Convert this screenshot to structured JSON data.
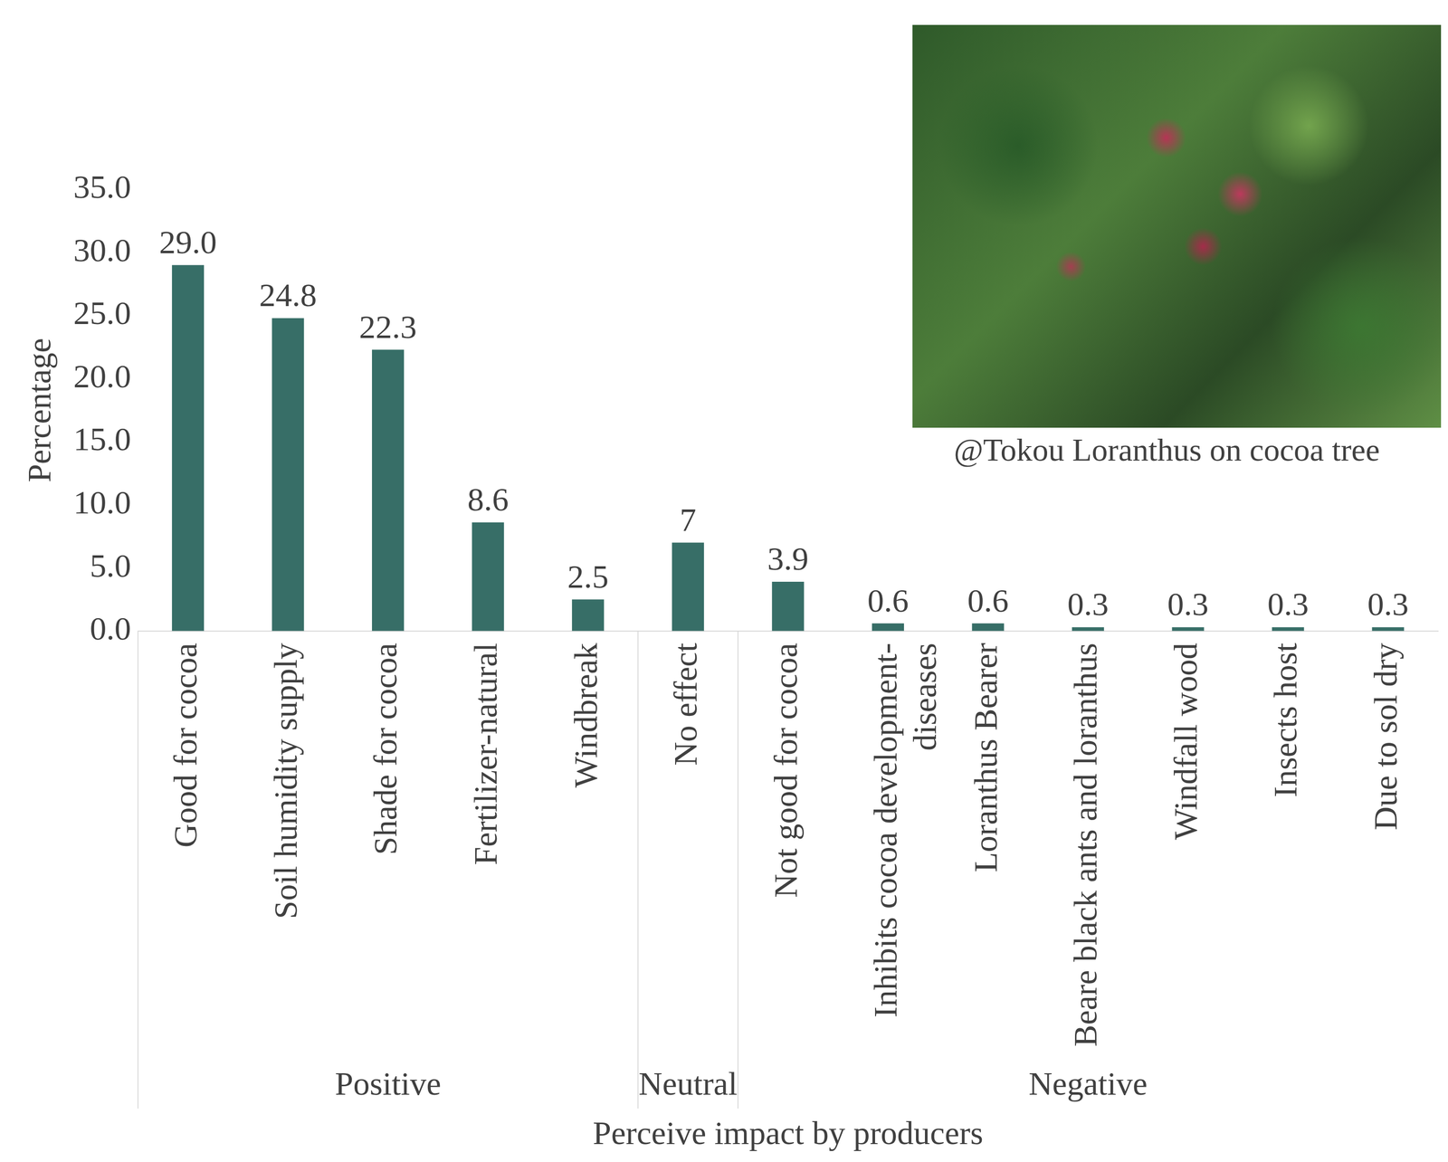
{
  "chart_data": {
    "type": "bar",
    "categories": [
      "Good for cocoa",
      "Soil humidity supply",
      "Shade for cocoa",
      "Fertilizer-natural",
      "Windbreak",
      "No effect",
      "Not good for cocoa",
      "Inhibits cocoa development-diseases",
      "Loranthus Bearer",
      "Beare black ants and loranthus",
      "Windfall wood",
      "Insects host",
      "Due to sol dry"
    ],
    "group_labels": [
      "Positive",
      "Positive",
      "Positive",
      "Positive",
      "Positive",
      "Neutral",
      "Negative",
      "Negative",
      "Negative",
      "Negative",
      "Negative",
      "Negative",
      "Negative"
    ],
    "values": [
      29.0,
      24.8,
      22.3,
      8.6,
      2.5,
      7,
      3.9,
      0.6,
      0.6,
      0.3,
      0.3,
      0.3,
      0.3
    ],
    "value_labels": [
      "29.0",
      "24.8",
      "22.3",
      "8.6",
      "2.5",
      "7",
      "3.9",
      "0.6",
      "0.6",
      "0.3",
      "0.3",
      "0.3",
      "0.3"
    ],
    "color": "#376e67",
    "ylim": [
      0,
      35
    ],
    "yticks": [
      {
        "value": 0,
        "label": "0.0"
      },
      {
        "value": 5,
        "label": "5.0"
      },
      {
        "value": 10,
        "label": "10.0"
      },
      {
        "value": 15,
        "label": "15.0"
      },
      {
        "value": 20,
        "label": "20.0"
      },
      {
        "value": 25,
        "label": "25.0"
      },
      {
        "value": 30,
        "label": "30.0"
      },
      {
        "value": 35,
        "label": "35.0"
      }
    ],
    "y_label": "Percentage",
    "x_label": "Perceive impact by producers",
    "annotations": [
      "@Tokou Loranthus on cocoa tree"
    ],
    "grid": false,
    "data_labels": true
  }
}
